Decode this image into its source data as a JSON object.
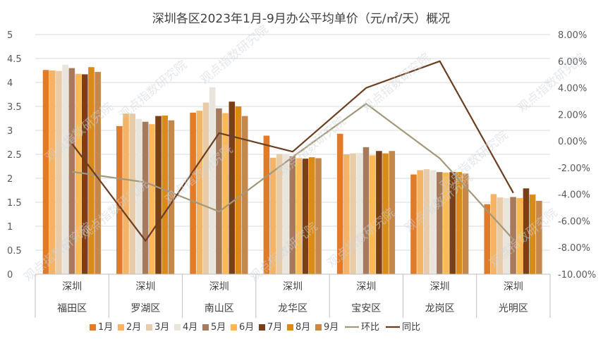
{
  "chart_data": {
    "type": "bar",
    "title": "深圳各区2023年1月-9月办公平均单价（元/㎡/天）概况",
    "categories": [
      {
        "line1": "深圳",
        "line2": "福田区"
      },
      {
        "line1": "深圳",
        "line2": "罗湖区"
      },
      {
        "line1": "深圳",
        "line2": "南山区"
      },
      {
        "line1": "深圳",
        "line2": "龙华区"
      },
      {
        "line1": "深圳",
        "line2": "宝安区"
      },
      {
        "line1": "深圳",
        "line2": "龙岗区"
      },
      {
        "line1": "深圳",
        "line2": "光明区"
      }
    ],
    "ylim": [
      0,
      5
    ],
    "y_ticks": [
      "0",
      "0.5",
      "1",
      "1.5",
      "2",
      "2.5",
      "3",
      "3.5",
      "4",
      "4.5",
      "5"
    ],
    "y2lim": [
      -10,
      8
    ],
    "y2_ticks": [
      "-10.00%",
      "-8.00%",
      "-6.00%",
      "-4.00%",
      "-2.00%",
      "0.00%",
      "2.00%",
      "4.00%",
      "6.00%",
      "8.00%"
    ],
    "bar_series": [
      {
        "name": "1月",
        "color": "#e07b2a",
        "values": [
          4.26,
          3.09,
          3.37,
          2.89,
          2.93,
          2.08,
          1.46
        ]
      },
      {
        "name": "2月",
        "color": "#f4b365",
        "values": [
          4.25,
          3.35,
          3.41,
          2.43,
          2.5,
          2.17,
          1.67
        ]
      },
      {
        "name": "3月",
        "color": "#e8cba8",
        "values": [
          4.24,
          3.35,
          3.58,
          2.51,
          2.52,
          2.19,
          1.6
        ]
      },
      {
        "name": "4月",
        "color": "#e9e4dc",
        "values": [
          4.37,
          3.24,
          3.9,
          2.5,
          2.53,
          2.17,
          1.59
        ]
      },
      {
        "name": "5月",
        "color": "#a77a5c",
        "values": [
          4.3,
          3.18,
          3.46,
          2.46,
          2.65,
          2.13,
          1.61
        ]
      },
      {
        "name": "6月",
        "color": "#fbb956",
        "values": [
          4.18,
          3.13,
          3.36,
          2.42,
          2.48,
          2.12,
          1.59
        ]
      },
      {
        "name": "7月",
        "color": "#7a3f16",
        "values": [
          4.17,
          3.3,
          3.6,
          2.41,
          2.57,
          2.13,
          1.79
        ]
      },
      {
        "name": "8月",
        "color": "#d98b1a",
        "values": [
          4.32,
          3.31,
          3.5,
          2.44,
          2.52,
          2.13,
          1.66
        ]
      },
      {
        "name": "9月",
        "color": "#c6884a",
        "values": [
          4.22,
          3.21,
          3.3,
          2.42,
          2.57,
          2.1,
          1.53
        ]
      }
    ],
    "line_series": [
      {
        "name": "环比",
        "color": "#a3987a",
        "values": [
          -2.3,
          -3.1,
          -5.3,
          -1.2,
          2.8,
          -1.3,
          -7.4
        ]
      },
      {
        "name": "同比",
        "color": "#6b3e20",
        "values": [
          -0.2,
          -7.5,
          0.6,
          -0.8,
          4.0,
          6.0,
          -3.9
        ]
      }
    ],
    "watermark": "观点指数研究院"
  }
}
